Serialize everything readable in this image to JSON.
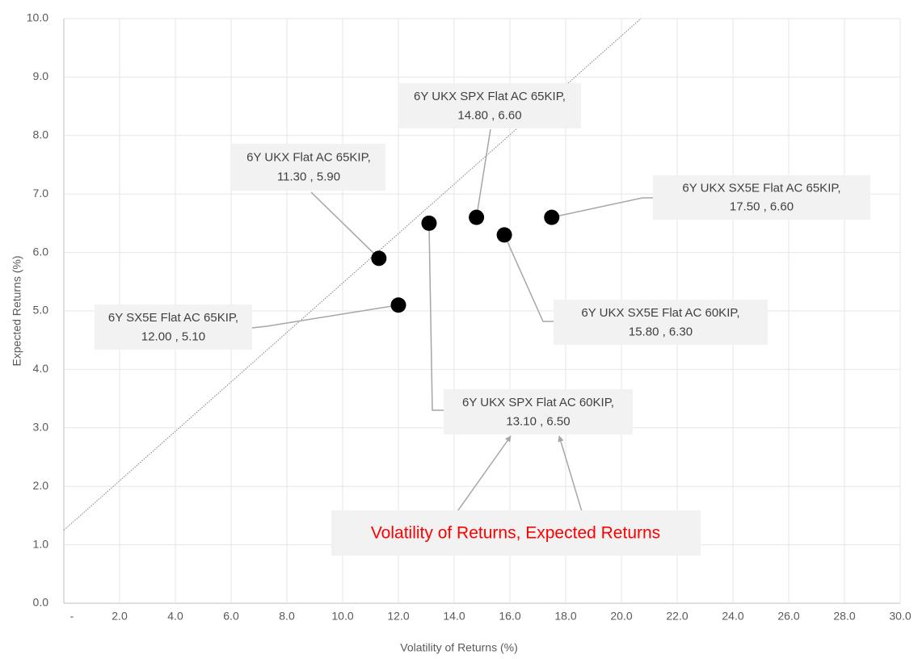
{
  "chart_data": {
    "type": "scatter",
    "x_label": "Volatility of Returns (%)",
    "y_label": "Expected Returns (%)",
    "x": [
      11.3,
      12.0,
      13.1,
      14.8,
      15.8,
      17.5
    ],
    "values": [
      5.9,
      5.1,
      6.5,
      6.6,
      6.3,
      6.6
    ],
    "point_labels": [
      "6Y UKX Flat AC 65KIP,",
      "6Y SX5E Flat AC 65KIP,",
      "6Y UKX SPX Flat AC 60KIP,",
      "6Y UKX SPX Flat AC 65KIP,",
      "6Y UKX SX5E Flat AC 60KIP,",
      "6Y UKX SX5E Flat AC 65KIP,"
    ],
    "value_labels": [
      "11.30 , 5.90",
      "12.00 , 5.10",
      "13.10 , 6.50",
      "14.80 , 6.60",
      "15.80 , 6.30",
      "17.50 , 6.60"
    ],
    "color": "#000000",
    "trendline": {
      "x": [
        0,
        20.7
      ],
      "values": [
        1.25,
        10
      ],
      "color": "#808080"
    },
    "annotation": "Volatility of Returns, Expected Returns",
    "annotation_color": "#ff0000",
    "xlim": [
      0,
      30
    ],
    "ylim": [
      0,
      10
    ],
    "xticks": [
      {
        "value": 0,
        "label": "-"
      },
      {
        "value": 2,
        "label": "2.0"
      },
      {
        "value": 4,
        "label": "4.0"
      },
      {
        "value": 6,
        "label": "6.0"
      },
      {
        "value": 8,
        "label": "8.0"
      },
      {
        "value": 10,
        "label": "10.0"
      },
      {
        "value": 12,
        "label": "12.0"
      },
      {
        "value": 14,
        "label": "14.0"
      },
      {
        "value": 16,
        "label": "16.0"
      },
      {
        "value": 18,
        "label": "18.0"
      },
      {
        "value": 20,
        "label": "20.0"
      },
      {
        "value": 22,
        "label": "22.0"
      },
      {
        "value": 24,
        "label": "24.0"
      },
      {
        "value": 26,
        "label": "26.0"
      },
      {
        "value": 28,
        "label": "28.0"
      },
      {
        "value": 30,
        "label": "30.0"
      }
    ],
    "yticks": [
      {
        "value": 0,
        "label": "0.0"
      },
      {
        "value": 1,
        "label": "1.0"
      },
      {
        "value": 2,
        "label": "2.0"
      },
      {
        "value": 3,
        "label": "3.0"
      },
      {
        "value": 4,
        "label": "4.0"
      },
      {
        "value": 5,
        "label": "5.0"
      },
      {
        "value": 6,
        "label": "6.0"
      },
      {
        "value": 7,
        "label": "7.0"
      },
      {
        "value": 8,
        "label": "8.0"
      },
      {
        "value": 9,
        "label": "9.0"
      },
      {
        "value": 10,
        "label": "10.0"
      }
    ],
    "grid": true
  }
}
